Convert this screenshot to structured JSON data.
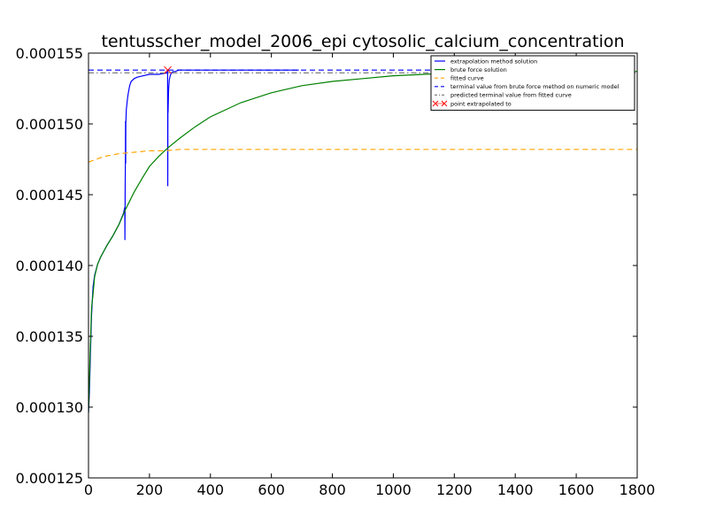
{
  "chart_data": {
    "type": "line",
    "title": "tentusscher_model_2006_epi cytosolic_calcium_concentration",
    "xlabel": "",
    "ylabel": "",
    "xlim": [
      0,
      1800
    ],
    "ylim": [
      0.000125,
      0.000155
    ],
    "x_ticks": [
      0,
      200,
      400,
      600,
      800,
      1000,
      1200,
      1400,
      1600,
      1800
    ],
    "x_tick_labels": [
      "0",
      "200",
      "400",
      "600",
      "800",
      "1000",
      "1200",
      "1400",
      "1600",
      "1800"
    ],
    "y_ticks": [
      0.000125,
      0.00013,
      0.000135,
      0.00014,
      0.000145,
      0.00015,
      0.000155
    ],
    "y_tick_labels": [
      "0.000125",
      "0.000130",
      "0.000135",
      "0.000140",
      "0.000145",
      "0.000150",
      "0.000155"
    ],
    "grid": false,
    "legend_position": "top-right",
    "series": [
      {
        "name": "extrapolation method solution",
        "color": "#0000ff",
        "style": "solid",
        "x": [
          0,
          3,
          6,
          10,
          15,
          20,
          30,
          40,
          50,
          60,
          80,
          100,
          115,
          119,
          119.5,
          120,
          120.5,
          121,
          121.5,
          122,
          122.5,
          124,
          126,
          128,
          130,
          135,
          140,
          150,
          160,
          180,
          200,
          230,
          258,
          259,
          259.5,
          260,
          260.5,
          261,
          262,
          263,
          265,
          268,
          272,
          278,
          285,
          295,
          310,
          330,
          400,
          500,
          600,
          690
        ],
        "y": [
          0.0001296,
          0.000131,
          0.0001335,
          0.0001365,
          0.0001385,
          0.0001393,
          0.0001401,
          0.0001406,
          0.000141,
          0.0001414,
          0.0001421,
          0.0001429,
          0.0001437,
          0.0001441,
          0.0001418,
          0.0001441,
          0.000146,
          0.0001474,
          0.0001502,
          0.0001472,
          0.00015,
          0.000151,
          0.0001514,
          0.0001518,
          0.0001521,
          0.0001527,
          0.000153,
          0.0001532,
          0.0001533,
          0.0001534,
          0.0001535,
          0.0001535,
          0.0001536,
          0.0001538,
          0.0001536,
          0.0001456,
          0.000151,
          0.0001508,
          0.0001518,
          0.0001525,
          0.0001531,
          0.0001534,
          0.0001536,
          0.0001537,
          0.0001537,
          0.0001538,
          0.0001538,
          0.0001538,
          0.0001538,
          0.0001538,
          0.0001538,
          0.0001538
        ]
      },
      {
        "name": "brute force solution",
        "color": "#008000",
        "style": "solid",
        "x": [
          0,
          5,
          10,
          15,
          20,
          30,
          40,
          60,
          80,
          100,
          120,
          150,
          180,
          200,
          230,
          260,
          300,
          350,
          400,
          450,
          500,
          600,
          700,
          800,
          900,
          1000,
          1100,
          1200,
          1300,
          1400,
          1500,
          1600,
          1700,
          1800
        ],
        "y": [
          0.0001296,
          0.0001335,
          0.000137,
          0.000138,
          0.0001392,
          0.0001401,
          0.0001406,
          0.0001414,
          0.0001421,
          0.0001429,
          0.0001439,
          0.0001452,
          0.0001463,
          0.000147,
          0.0001477,
          0.0001483,
          0.000149,
          0.0001498,
          0.0001505,
          0.000151,
          0.0001515,
          0.0001522,
          0.0001527,
          0.000153,
          0.0001532,
          0.0001534,
          0.0001535,
          0.0001536,
          0.0001536,
          0.0001537,
          0.0001537,
          0.0001537,
          0.0001537,
          0.0001537
        ]
      },
      {
        "name": "fitted curve",
        "color": "#ffa500",
        "style": "dashed",
        "x": [
          0,
          25,
          50,
          100,
          150,
          200,
          250,
          300,
          400,
          500,
          600,
          800,
          1000,
          1200,
          1400,
          1600,
          1800
        ],
        "y": [
          0.0001473,
          0.0001475,
          0.0001477,
          0.0001479,
          0.000148,
          0.0001481,
          0.0001481,
          0.0001482,
          0.0001482,
          0.0001482,
          0.0001482,
          0.0001482,
          0.0001482,
          0.0001482,
          0.0001482,
          0.0001482,
          0.0001482
        ]
      },
      {
        "name": "terminal value from brute force method on numeric model",
        "color": "#0000ff",
        "style": "dashed",
        "x": [
          0,
          1800
        ],
        "y": [
          0.0001538,
          0.0001538
        ]
      },
      {
        "name": "predicted terminal value from fitted curve",
        "color": "#808080",
        "style": "dashdot",
        "x": [
          0,
          1800
        ],
        "y": [
          0.0001536,
          0.0001536
        ]
      },
      {
        "name": "point extrapolated to",
        "color": "#ff0000",
        "style": "marker-x",
        "x": [
          260
        ],
        "y": [
          0.0001538
        ]
      }
    ]
  }
}
